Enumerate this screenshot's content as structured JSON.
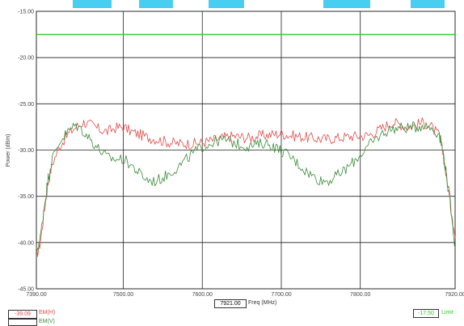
{
  "chart_data": {
    "type": "line",
    "title": "",
    "xlabel": "Freq (MHz)",
    "ylabel": "Power (dBm)",
    "xlim": [
      7390,
      7920
    ],
    "ylim": [
      -45,
      -15
    ],
    "grid": true,
    "x_ticks": [
      {
        "value": 7390,
        "label": "7390.00"
      },
      {
        "value": 7500,
        "label": "7500.00"
      },
      {
        "value": 7600,
        "label": "7600.00"
      },
      {
        "value": 7700,
        "label": "7700.00"
      },
      {
        "value": 7800,
        "label": "7800.00"
      },
      {
        "value": 7920,
        "label": "7920.00"
      }
    ],
    "y_ticks": [
      {
        "value": -15,
        "label": "-15.00"
      },
      {
        "value": -20,
        "label": "-20.00"
      },
      {
        "value": -25,
        "label": "-25.00"
      },
      {
        "value": -30,
        "label": "-30.00"
      },
      {
        "value": -35,
        "label": "-35.00"
      },
      {
        "value": -40,
        "label": "-40.00"
      },
      {
        "value": -45,
        "label": "-45.00"
      }
    ],
    "limit_line": {
      "value": -17.5,
      "color": "#2ecc2e"
    },
    "series": [
      {
        "name": "EM(H)",
        "color": "#e24a4a",
        "x": [
          7390,
          7395,
          7400,
          7405,
          7410,
          7420,
          7430,
          7440,
          7450,
          7460,
          7470,
          7480,
          7490,
          7500,
          7510,
          7520,
          7530,
          7540,
          7550,
          7560,
          7570,
          7580,
          7590,
          7600,
          7610,
          7620,
          7630,
          7640,
          7650,
          7660,
          7670,
          7680,
          7690,
          7700,
          7710,
          7720,
          7730,
          7740,
          7750,
          7760,
          7770,
          7780,
          7790,
          7800,
          7810,
          7820,
          7830,
          7840,
          7850,
          7860,
          7870,
          7880,
          7890,
          7900,
          7905,
          7910,
          7915,
          7920
        ],
        "values": [
          -41.5,
          -40.0,
          -36.5,
          -33.5,
          -31.5,
          -29.5,
          -28.3,
          -27.5,
          -27.0,
          -27.3,
          -27.8,
          -28.0,
          -27.6,
          -27.5,
          -28.0,
          -28.3,
          -28.6,
          -28.8,
          -29.0,
          -29.2,
          -29.3,
          -29.3,
          -29.3,
          -29.2,
          -29.0,
          -28.8,
          -28.6,
          -28.5,
          -28.6,
          -28.7,
          -28.5,
          -28.4,
          -28.3,
          -28.2,
          -28.4,
          -28.5,
          -28.6,
          -28.7,
          -28.8,
          -28.8,
          -28.7,
          -28.6,
          -28.5,
          -28.5,
          -28.4,
          -28.0,
          -27.5,
          -27.0,
          -27.2,
          -27.5,
          -27.3,
          -27.0,
          -27.5,
          -28.5,
          -30.5,
          -33.5,
          -36.5,
          -39.5
        ]
      },
      {
        "name": "EM(V)",
        "color": "#3a8a3a",
        "x": [
          7390,
          7395,
          7400,
          7405,
          7410,
          7420,
          7430,
          7440,
          7450,
          7460,
          7470,
          7480,
          7490,
          7500,
          7510,
          7520,
          7530,
          7540,
          7550,
          7560,
          7570,
          7580,
          7590,
          7600,
          7610,
          7620,
          7630,
          7640,
          7650,
          7660,
          7670,
          7680,
          7690,
          7700,
          7710,
          7720,
          7730,
          7740,
          7750,
          7760,
          7770,
          7780,
          7790,
          7800,
          7810,
          7820,
          7830,
          7840,
          7850,
          7860,
          7870,
          7880,
          7890,
          7900,
          7905,
          7910,
          7915,
          7920
        ],
        "values": [
          -41.0,
          -39.5,
          -36.0,
          -33.0,
          -31.0,
          -29.0,
          -28.0,
          -27.3,
          -28.0,
          -29.0,
          -30.0,
          -30.8,
          -31.0,
          -31.0,
          -31.6,
          -32.5,
          -33.2,
          -33.4,
          -33.0,
          -32.4,
          -31.8,
          -31.0,
          -30.2,
          -29.7,
          -29.3,
          -29.0,
          -28.9,
          -29.2,
          -29.5,
          -29.6,
          -29.4,
          -29.2,
          -29.6,
          -30.1,
          -30.6,
          -31.4,
          -32.2,
          -32.8,
          -33.3,
          -33.3,
          -32.8,
          -32.2,
          -31.4,
          -30.5,
          -29.6,
          -28.8,
          -28.1,
          -27.7,
          -27.6,
          -27.6,
          -27.5,
          -27.3,
          -27.6,
          -28.3,
          -30.3,
          -33.2,
          -36.5,
          -40.5
        ]
      }
    ],
    "readouts": {
      "cursor_freq": "7921.00",
      "left_value": "-39.09",
      "right_value": "-17.50",
      "right_label": "Limit",
      "legend_h": "EM(H)",
      "legend_v": "EM(V)"
    }
  },
  "colors": {
    "grid": "#222222",
    "frame": "#444444",
    "watermark": "#33c9f0"
  }
}
